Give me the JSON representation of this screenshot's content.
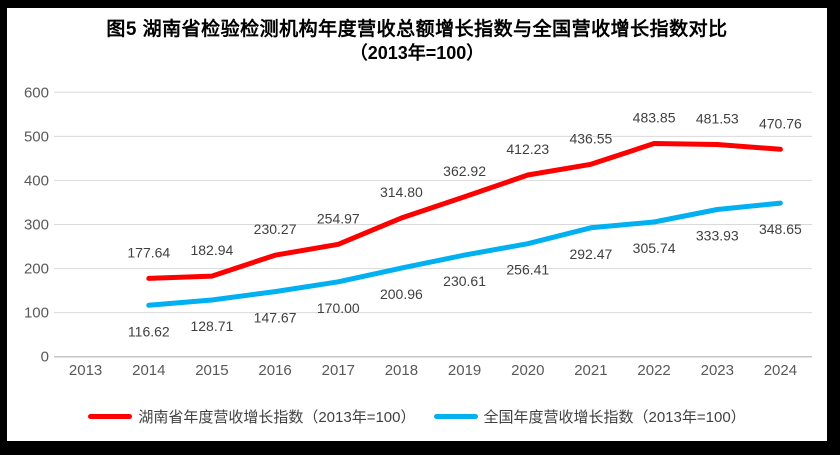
{
  "chart_data": {
    "type": "line",
    "title": "图5 湖南省检验检测机构年度营收总额增长指数与全国营收增长指数对比（2013年=100）",
    "title_lines": [
      "图5 湖南省检验检测机构年度营收总额增长指数与全国营收增长指数对比",
      "（2013年=100）"
    ],
    "categories": [
      "2013",
      "2014",
      "2015",
      "2016",
      "2017",
      "2018",
      "2019",
      "2020",
      "2021",
      "2022",
      "2023",
      "2024"
    ],
    "series": [
      {
        "id": "hunan-series",
        "name": "湖南省年度营收增长指数（2013年=100）",
        "color": "#FF0000",
        "label_position": "above",
        "values": [
          null,
          177.64,
          182.94,
          230.27,
          254.97,
          314.8,
          362.92,
          412.23,
          436.55,
          483.85,
          481.53,
          470.76
        ]
      },
      {
        "id": "national-series",
        "name": "全国年度营收增长指数（2013年=100）",
        "color": "#00B0F0",
        "label_position": "below",
        "values": [
          null,
          116.62,
          128.71,
          147.67,
          170.0,
          200.96,
          230.61,
          256.41,
          292.47,
          305.74,
          333.93,
          348.65
        ]
      }
    ],
    "ylim": [
      0,
      600
    ],
    "yticks": [
      0,
      100,
      200,
      300,
      400,
      500,
      600
    ],
    "value_label_decimals": 2,
    "grid": "horizontal",
    "legend_position": "bottom",
    "colors": {
      "hunan_red": "#FF0000",
      "national_blue": "#00B0F0",
      "frame_border": "#000000"
    }
  }
}
